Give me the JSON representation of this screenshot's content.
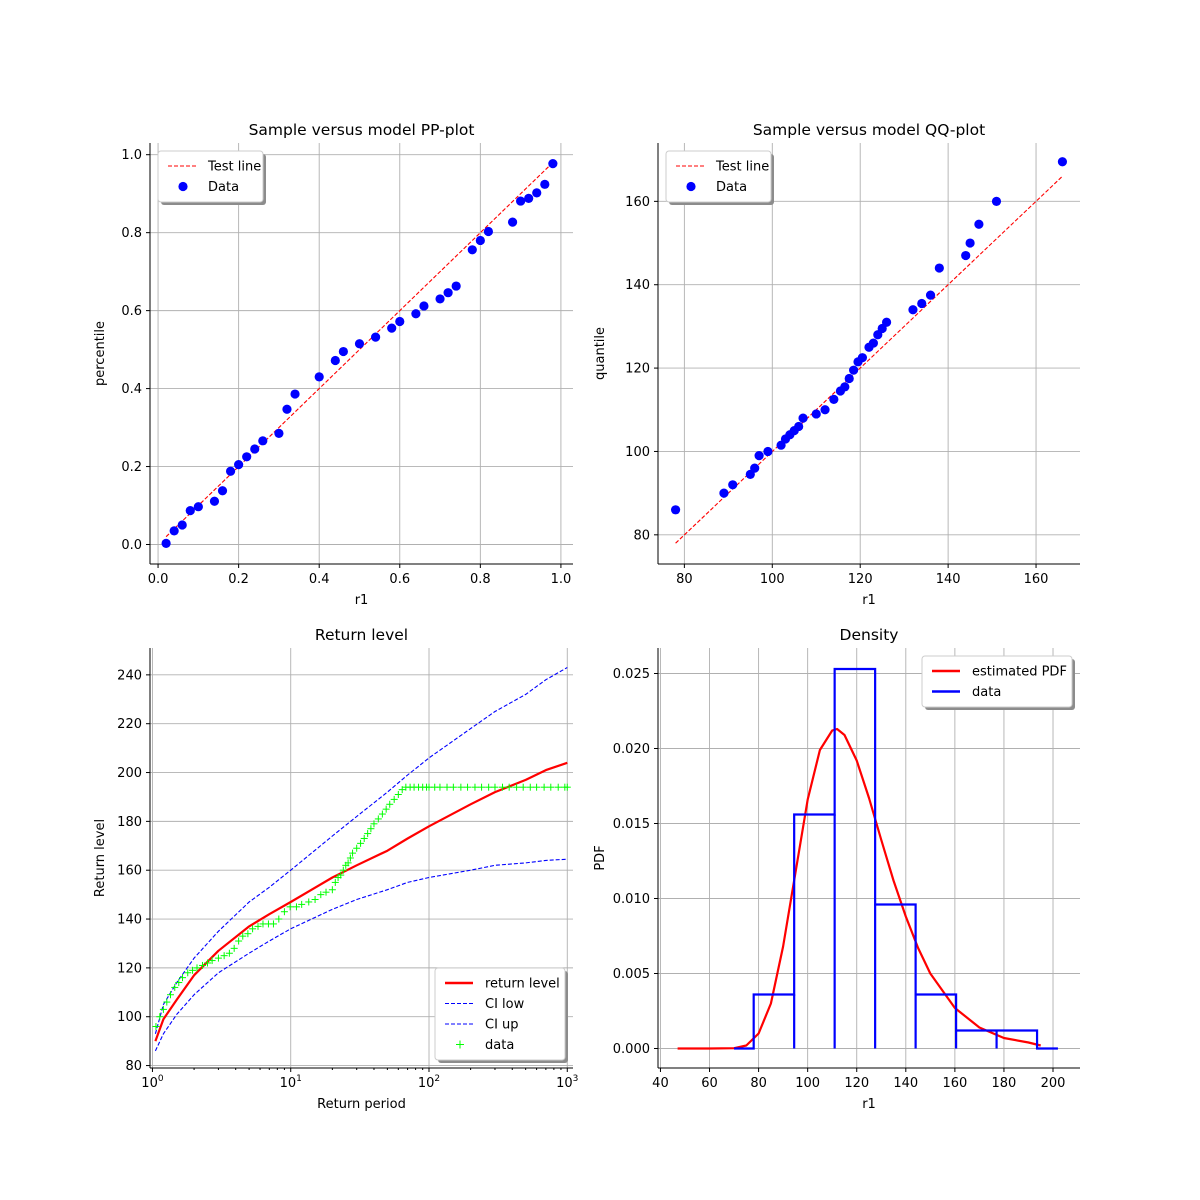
{
  "chart_data": [
    {
      "type": "scatter",
      "title": "Sample versus model PP-plot",
      "xlabel": "r1",
      "ylabel": "percentile",
      "xlim": [
        -0.02,
        1.03
      ],
      "ylim": [
        -0.05,
        1.03
      ],
      "xticks": [
        "0.0",
        "0.2",
        "0.4",
        "0.6",
        "0.8",
        "1.0"
      ],
      "yticks": [
        "0.0",
        "0.2",
        "0.4",
        "0.6",
        "0.8",
        "1.0"
      ],
      "grid": true,
      "legend_position": "top-left",
      "series": [
        {
          "name": "Test line",
          "kind": "dashed-line",
          "color": "#ff0000",
          "x": [
            0.02,
            0.98
          ],
          "y": [
            0.02,
            0.98
          ]
        },
        {
          "name": "Data",
          "kind": "points",
          "color": "#0000ff",
          "x": [
            0.02,
            0.04,
            0.06,
            0.08,
            0.1,
            0.14,
            0.16,
            0.18,
            0.2,
            0.22,
            0.24,
            0.26,
            0.3,
            0.32,
            0.34,
            0.4,
            0.44,
            0.46,
            0.5,
            0.54,
            0.58,
            0.6,
            0.64,
            0.66,
            0.7,
            0.72,
            0.74,
            0.78,
            0.8,
            0.82,
            0.88,
            0.9,
            0.92,
            0.94,
            0.96,
            0.98
          ],
          "y": [
            0.003,
            0.035,
            0.05,
            0.087,
            0.097,
            0.111,
            0.138,
            0.188,
            0.205,
            0.225,
            0.245,
            0.266,
            0.285,
            0.347,
            0.386,
            0.43,
            0.472,
            0.495,
            0.515,
            0.532,
            0.555,
            0.572,
            0.592,
            0.612,
            0.63,
            0.646,
            0.663,
            0.756,
            0.78,
            0.803,
            0.827,
            0.881,
            0.888,
            0.902,
            0.924,
            0.977
          ]
        }
      ]
    },
    {
      "type": "scatter",
      "title": "Sample versus model QQ-plot",
      "xlabel": "r1",
      "ylabel": "quantile",
      "xlim": [
        74,
        170
      ],
      "ylim": [
        73,
        174
      ],
      "xticks": [
        "80",
        "100",
        "120",
        "140",
        "160"
      ],
      "yticks": [
        "80",
        "100",
        "120",
        "140",
        "160"
      ],
      "grid": true,
      "legend_position": "top-left",
      "series": [
        {
          "name": "Test line",
          "kind": "dashed-line",
          "color": "#ff0000",
          "x": [
            78,
            166
          ],
          "y": [
            78,
            166
          ]
        },
        {
          "name": "Data",
          "kind": "points",
          "color": "#0000ff",
          "x": [
            78,
            89,
            91,
            95,
            96,
            97,
            99,
            102,
            103,
            104,
            105,
            106,
            107,
            110,
            112,
            114,
            115.5,
            116.5,
            117.5,
            118.5,
            119.5,
            120.5,
            122,
            123,
            124,
            125,
            126,
            132,
            134,
            136,
            138,
            144,
            145,
            147,
            151,
            166
          ],
          "y": [
            86,
            90,
            92,
            94.5,
            96,
            99,
            100,
            101.5,
            103,
            104,
            105,
            106,
            108,
            109,
            110,
            112.5,
            114.5,
            115.5,
            117.5,
            119.5,
            121.5,
            122.5,
            125,
            126,
            128,
            129.5,
            131,
            134,
            135.5,
            137.5,
            144,
            147,
            150,
            154.5,
            160,
            169.5
          ]
        }
      ]
    },
    {
      "type": "line",
      "title": "Return level",
      "xlabel": "Return period",
      "ylabel": "Return level",
      "xscale": "log",
      "xlim": [
        0.96,
        1100
      ],
      "ylim": [
        79,
        251
      ],
      "xticks": [
        {
          "base": "10",
          "exp": "0"
        },
        {
          "base": "10",
          "exp": "1"
        },
        {
          "base": "10",
          "exp": "2"
        },
        {
          "base": "10",
          "exp": "3"
        }
      ],
      "yticks": [
        "80",
        "100",
        "120",
        "140",
        "160",
        "180",
        "200",
        "220",
        "240"
      ],
      "grid": true,
      "legend_position": "bottom-right",
      "series": [
        {
          "name": "return level",
          "kind": "solid-line",
          "color": "#ff0000",
          "x": [
            1.05,
            1.2,
            1.5,
            2,
            3,
            5,
            7,
            10,
            20,
            30,
            50,
            70,
            100,
            200,
            300,
            500,
            700,
            1000
          ],
          "y": [
            90,
            99,
            107,
            117,
            127,
            137,
            142,
            147,
            157,
            162,
            168,
            173,
            178,
            187,
            192,
            197,
            201,
            204
          ]
        },
        {
          "name": "CI low",
          "kind": "dashed-line",
          "color": "#0000ff",
          "x": [
            1.05,
            1.2,
            1.5,
            2,
            3,
            5,
            7,
            10,
            20,
            30,
            50,
            70,
            100,
            200,
            300,
            500,
            700,
            1000
          ],
          "y": [
            86,
            93,
            101,
            109,
            118,
            126,
            131,
            136,
            144,
            148,
            152,
            155,
            157,
            160,
            162,
            163,
            164,
            164.5
          ]
        },
        {
          "name": "CI up",
          "kind": "dashed-line",
          "color": "#0000ff",
          "x": [
            1.05,
            1.2,
            1.5,
            2,
            3,
            5,
            7,
            10,
            20,
            30,
            50,
            70,
            100,
            200,
            300,
            500,
            700,
            1000
          ],
          "y": [
            93,
            105,
            114,
            124,
            135,
            147,
            153,
            160,
            174,
            182,
            192,
            199,
            206,
            218,
            225,
            232,
            238,
            243
          ]
        },
        {
          "name": "data",
          "kind": "plus-markers",
          "color": "#00ff00",
          "x": [
            1.06,
            1.13,
            1.2,
            1.27,
            1.35,
            1.45,
            1.55,
            1.65,
            1.8,
            1.95,
            2.1,
            2.3,
            2.5,
            2.7,
            3.0,
            3.3,
            3.6,
            3.9,
            4.2,
            4.5,
            4.9,
            5.3,
            5.8,
            6.3,
            6.9,
            7.5,
            8.2,
            9.0,
            9.9,
            11,
            12,
            13.5,
            15,
            16.5,
            18,
            20,
            21,
            22,
            23,
            24,
            25,
            26,
            27,
            28,
            30,
            32,
            34,
            36,
            38,
            40,
            43,
            46,
            49,
            52,
            56,
            60,
            64,
            68,
            73,
            78,
            84,
            90,
            96,
            100,
            110,
            120,
            135,
            150,
            170,
            190,
            215,
            240,
            270,
            300,
            340,
            380,
            430,
            480,
            540,
            600,
            680,
            760,
            860,
            960,
            1000
          ],
          "y": [
            96,
            100,
            103,
            106,
            109,
            112,
            114,
            116,
            118,
            119,
            120,
            121,
            122,
            123,
            124,
            125,
            126,
            128,
            131,
            133,
            134,
            136,
            137,
            138,
            138,
            138,
            140,
            143,
            145,
            145,
            146,
            147,
            148,
            150,
            151,
            152,
            155,
            157,
            158,
            160,
            162,
            163,
            165,
            167,
            169,
            171,
            173,
            175,
            177,
            179,
            181,
            183,
            185,
            187,
            189,
            191,
            193,
            194,
            194,
            194,
            194,
            194,
            194,
            194,
            194,
            194,
            194,
            194,
            194,
            194,
            194,
            194,
            194,
            194,
            194,
            194,
            194,
            194,
            194,
            194,
            194,
            194,
            194,
            194,
            194
          ]
        }
      ]
    },
    {
      "type": "bar",
      "title": "Density",
      "xlabel": "r1",
      "ylabel": "PDF",
      "xlim": [
        39,
        211
      ],
      "ylim": [
        -0.0013,
        0.0267
      ],
      "xticks": [
        "40",
        "60",
        "80",
        "100",
        "120",
        "140",
        "160",
        "180",
        "200"
      ],
      "yticks": [
        "0.000",
        "0.005",
        "0.010",
        "0.015",
        "0.020",
        "0.025"
      ],
      "grid": true,
      "legend_position": "top-right",
      "series": [
        {
          "name": "estimated PDF",
          "kind": "solid-line",
          "color": "#ff0000",
          "x": [
            47,
            60,
            70,
            75,
            80,
            85,
            90,
            95,
            100,
            105,
            110,
            112,
            115,
            120,
            125,
            130,
            135,
            140,
            145,
            150,
            160,
            170,
            180,
            190,
            195
          ],
          "y": [
            0,
            0,
            2e-05,
            0.0002,
            0.001,
            0.003,
            0.0068,
            0.0117,
            0.0166,
            0.0199,
            0.0212,
            0.0213,
            0.0209,
            0.0192,
            0.0167,
            0.0139,
            0.0112,
            0.0088,
            0.0067,
            0.005,
            0.0027,
            0.0014,
            0.0007,
            0.0004,
            0.0002
          ]
        },
        {
          "name": "data",
          "kind": "step-histogram",
          "color": "#0000ff",
          "edges": [
            70,
            78,
            94.5,
            111,
            127.5,
            144,
            160.5,
            177,
            193.5,
            202
          ],
          "values": [
            0,
            0.0036,
            0.0156,
            0.0253,
            0.0096,
            0.0036,
            0.0012,
            0.0012,
            0
          ]
        }
      ]
    }
  ]
}
